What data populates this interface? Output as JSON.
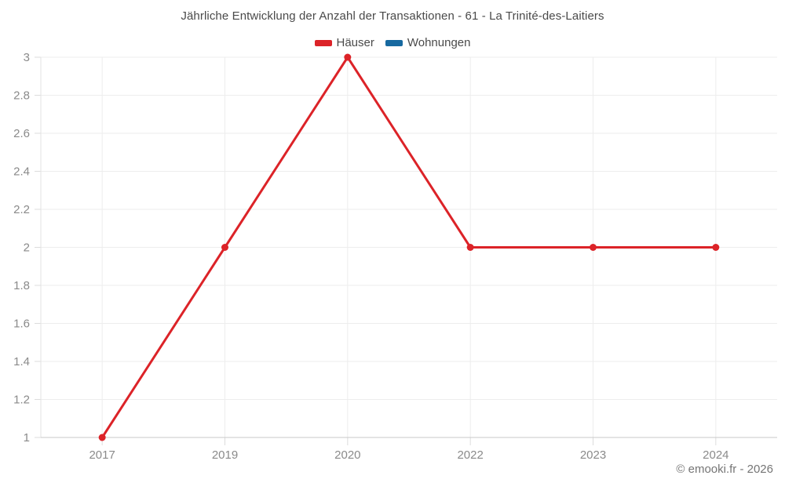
{
  "header": {
    "title": "Jährliche Entwicklung der Anzahl der Transaktionen - 61 - La Trinité-des-Laitiers"
  },
  "legend": [
    {
      "label": "Häuser",
      "color": "#dc2328"
    },
    {
      "label": "Wohnungen",
      "color": "#1769a0"
    }
  ],
  "footer": {
    "copyright": "© emooki.fr - 2026"
  },
  "chart_data": {
    "type": "line",
    "title": "Jährliche Entwicklung der Anzahl der Transaktionen - 61 - La Trinité-des-Laitiers",
    "categories": [
      "2017",
      "2019",
      "2020",
      "2022",
      "2023",
      "2024"
    ],
    "series": [
      {
        "name": "Häuser",
        "color": "#dc2328",
        "values": [
          1,
          2,
          3,
          2,
          2,
          2
        ]
      },
      {
        "name": "Wohnungen",
        "color": "#1769a0",
        "values": []
      }
    ],
    "xlabel": "",
    "ylabel": "",
    "ylim": [
      1,
      3
    ],
    "ytick_step": 0.2,
    "grid": true,
    "legend_position": "top"
  }
}
